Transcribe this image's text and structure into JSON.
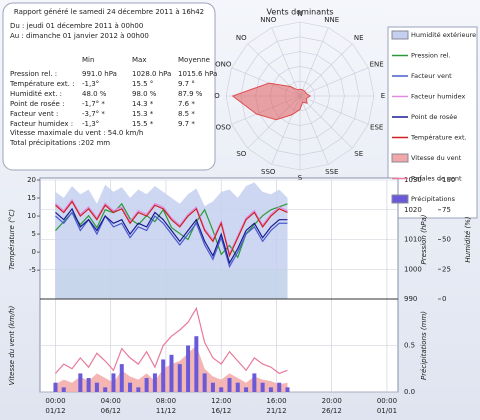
{
  "report": {
    "title": "Rapport généré le samedi 24 décembre 2011 à 16h42",
    "from": "Du : jeudi 01 décembre 2011 à 00h00",
    "to": "Au : dimanche 01 janvier 2012 à 00h00",
    "table": {
      "headers": [
        "Min",
        "Max",
        "Moyenne"
      ],
      "rows": [
        [
          "Pression rel. :",
          "991.0 hPa",
          "1028.0 hPa",
          "1015.6 hPa"
        ],
        [
          "Température ext. :",
          "-1,3°",
          "15.5 °",
          "9.7 °"
        ],
        [
          "Humidité ext. :",
          "48.0 %",
          "98.0 %",
          "87.9 %"
        ],
        [
          "Point de rosée :",
          "-1,7° *",
          "14.3 *",
          "7.6 *"
        ],
        [
          "Facteur vent :",
          "-3,7° *",
          "15.3 *",
          "8.5 *"
        ],
        [
          "Facteur humidex :",
          "-1,3°",
          "15.5 *",
          "9.7 *"
        ]
      ]
    },
    "max_wind": "Vitesse maximale du vent : 54.0 km/h",
    "total_precip": "Total précipitations :202 mm"
  },
  "chart_data": [
    {
      "type": "radar",
      "title": "Vents dominants",
      "categories": [
        "N",
        "NNE",
        "NE",
        "ENE",
        "E",
        "ESE",
        "SE",
        "SSE",
        "S",
        "SSO",
        "SO",
        "OSO",
        "O",
        "ONO",
        "NO",
        "NNO"
      ],
      "values": [
        1,
        1,
        1,
        1,
        1.5,
        1,
        1.5,
        1,
        2,
        3,
        5,
        7,
        10,
        5,
        2,
        1
      ],
      "rlim": [
        0,
        11
      ],
      "color": "#e05050"
    },
    {
      "type": "line",
      "x": [
        0,
        0.75,
        1.5,
        2.25,
        3,
        3.75,
        4.5,
        5.25,
        6,
        6.75,
        7.5,
        8.25,
        9,
        9.75,
        10.5,
        11.25,
        12,
        12.75,
        13.5,
        14.25,
        15,
        15.75,
        16.5,
        17.25,
        18,
        18.75,
        19.5,
        20.25,
        21
      ],
      "xlim": [
        -1.4,
        31
      ],
      "xticks": [
        {
          "value": 0,
          "label": "00:00"
        },
        {
          "value": 5,
          "label": "04:00"
        },
        {
          "value": 10,
          "label": "08:00"
        },
        {
          "value": 15,
          "label": "12:00"
        },
        {
          "value": 20,
          "label": "16:00"
        },
        {
          "value": 25,
          "label": "20:00"
        },
        {
          "value": 30,
          "label": "00:00"
        }
      ],
      "ylabel": "Température (°C)",
      "ylim": [
        -13,
        20
      ],
      "yticks": [
        20,
        15,
        10,
        5,
        0,
        -5
      ],
      "y2label": "Pression (hPa)",
      "y2lim": [
        990,
        1030
      ],
      "y2ticks": [
        1030,
        1020,
        1010,
        1000,
        990
      ],
      "y3label": "Humidité (%)",
      "y3lim": [
        0,
        100
      ],
      "y3ticks": [
        100,
        75,
        50,
        25,
        0
      ],
      "series": [
        {
          "name": "Humidité extérieure",
          "color": "#c4d0ee",
          "style": "area",
          "axis": "y3",
          "values": [
            90,
            85,
            95,
            88,
            92,
            80,
            96,
            90,
            94,
            85,
            92,
            88,
            95,
            90,
            85,
            80,
            88,
            93,
            78,
            82,
            90,
            92,
            85,
            95,
            98,
            90,
            88,
            92,
            85
          ]
        },
        {
          "name": "Pression rel.",
          "color": "#2a9a3a",
          "style": "line",
          "axis": "y2",
          "values": [
            1013,
            1016,
            1019,
            1015,
            1018,
            1014,
            1020,
            1019,
            1022,
            1017,
            1015,
            1018,
            1016,
            1020,
            1014,
            1012,
            1010,
            1016,
            1020,
            1013,
            1005,
            1008,
            1004,
            1012,
            1015,
            1018,
            1020,
            1021,
            1022
          ]
        },
        {
          "name": "Facteur vent",
          "color": "#4a5ad0",
          "style": "line",
          "values": [
            10,
            8,
            11,
            6,
            9,
            5,
            10,
            7,
            8,
            4,
            7,
            6,
            10,
            8,
            5,
            2,
            5,
            8,
            2,
            -2,
            4,
            -4,
            0,
            5,
            7,
            3,
            6,
            8,
            8
          ]
        },
        {
          "name": "Facteur humidex",
          "color": "#e08ae0",
          "style": "line",
          "values": [
            13.5,
            11.5,
            14.5,
            10.5,
            12.5,
            9.5,
            13.5,
            11.5,
            12.5,
            8.5,
            11.5,
            10.5,
            13.5,
            12.5,
            9.5,
            7.5,
            10.5,
            12.5,
            6.5,
            3.5,
            8.5,
            -0.5,
            4.5,
            9.5,
            11.5,
            7.5,
            10.5,
            12.5,
            11.5
          ]
        },
        {
          "name": "Point de rosée",
          "color": "#1a1a90",
          "style": "line",
          "values": [
            11,
            9,
            12,
            7,
            9,
            6,
            10,
            8,
            9,
            5,
            8,
            7,
            11,
            9,
            6,
            3,
            6,
            9,
            3,
            -1,
            5,
            -3,
            1,
            6,
            8,
            4,
            7,
            9,
            9
          ]
        },
        {
          "name": "Température ext.",
          "color": "#d02020",
          "style": "line",
          "values": [
            13,
            11,
            14,
            10,
            12,
            9,
            13,
            11,
            12,
            8,
            11,
            10,
            13,
            12,
            9,
            7,
            10,
            12,
            6,
            3,
            8,
            -1,
            4,
            9,
            11,
            7,
            10,
            12,
            11
          ]
        }
      ]
    },
    {
      "type": "line",
      "x": [
        0,
        0.75,
        1.5,
        2.25,
        3,
        3.75,
        4.5,
        5.25,
        6,
        6.75,
        7.5,
        8.25,
        9,
        9.75,
        10.5,
        11.25,
        12,
        12.75,
        13.5,
        14.25,
        15,
        15.75,
        16.5,
        17.25,
        18,
        18.75,
        19.5,
        20.25,
        21
      ],
      "xlim": [
        -1.4,
        31
      ],
      "xticks": [
        {
          "value": 0,
          "label": "01/12"
        },
        {
          "value": 5,
          "label": "06/12"
        },
        {
          "value": 10,
          "label": "11/12"
        },
        {
          "value": 15,
          "label": "16/12"
        },
        {
          "value": 20,
          "label": "21/12"
        },
        {
          "value": 25,
          "label": "26/12"
        },
        {
          "value": 30,
          "label": "01/01"
        }
      ],
      "ylabel": "Vitesse du vent (km/h)",
      "ylim": [
        0,
        60
      ],
      "y2label": "Précipitations (mm)",
      "y2lim": [
        0,
        1
      ],
      "y2ticks": [
        {
          "value": 0.5,
          "label": "0.5"
        },
        {
          "value": 0,
          "label": "0.0"
        }
      ],
      "series": [
        {
          "name": "Vitesse du vent",
          "color": "#f2a8a8",
          "style": "area",
          "values": [
            5,
            8,
            6,
            10,
            7,
            12,
            9,
            6,
            14,
            10,
            8,
            12,
            7,
            15,
            18,
            20,
            25,
            30,
            15,
            10,
            8,
            12,
            9,
            6,
            10,
            8,
            7,
            5,
            6
          ]
        },
        {
          "name": "Rafales de vent",
          "color": "#e87a9a",
          "style": "line",
          "values": [
            12,
            18,
            15,
            22,
            16,
            25,
            20,
            14,
            28,
            22,
            18,
            26,
            16,
            30,
            36,
            40,
            45,
            54,
            32,
            22,
            18,
            26,
            20,
            14,
            22,
            18,
            16,
            12,
            14
          ]
        },
        {
          "name": "Précipitations",
          "color": "#6a5ad8",
          "style": "bar",
          "axis": "y2",
          "values": [
            0.1,
            0.05,
            0,
            0.2,
            0.15,
            0.1,
            0.05,
            0.2,
            0.3,
            0.1,
            0.05,
            0.15,
            0.2,
            0.35,
            0.4,
            0.3,
            0.5,
            0.6,
            0.2,
            0.1,
            0.05,
            0.15,
            0.1,
            0.05,
            0.2,
            0.1,
            0.05,
            0.1,
            0.05
          ]
        }
      ]
    }
  ]
}
